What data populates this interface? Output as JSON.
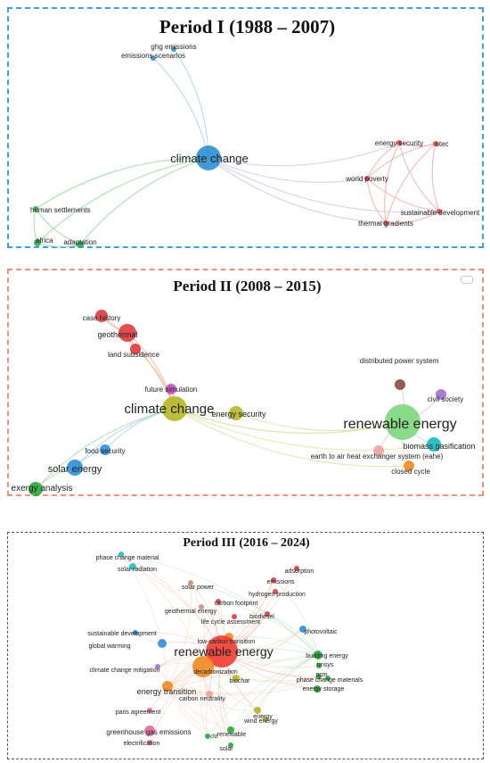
{
  "panels": [
    {
      "title": "Period I (1988 – 2007)",
      "border_color": "#3aa0e8",
      "nodes": [
        {
          "id": "cc",
          "label": "climate change",
          "color": "#2b8fd0"
        },
        {
          "id": "ghg",
          "label": "ghg emissions",
          "color": "#2b8fd0"
        },
        {
          "id": "es",
          "label": "emissions scenarios",
          "color": "#2b8fd0"
        },
        {
          "id": "hs",
          "label": "human settlements",
          "color": "#2ea84a"
        },
        {
          "id": "af",
          "label": "africa",
          "color": "#2ea84a"
        },
        {
          "id": "ad",
          "label": "adaptation",
          "color": "#2ea84a"
        },
        {
          "id": "en",
          "label": "energy security",
          "color": "#e0454a"
        },
        {
          "id": "ot",
          "label": "otec",
          "color": "#e0454a"
        },
        {
          "id": "wp",
          "label": "world poverty",
          "color": "#e0454a"
        },
        {
          "id": "sd",
          "label": "sustainable development",
          "color": "#e0454a"
        },
        {
          "id": "tg",
          "label": "thermal gradients",
          "color": "#e0454a"
        }
      ]
    },
    {
      "title": "Period II (2008 – 2015)",
      "border_color": "#f0927a",
      "nodes": [
        {
          "id": "ch",
          "label": "case history",
          "color": "#e0393e"
        },
        {
          "id": "ge",
          "label": "geothermal",
          "color": "#e0393e"
        },
        {
          "id": "ls",
          "label": "land subsidence",
          "color": "#e0393e"
        },
        {
          "id": "fs",
          "label": "future simulation",
          "color": "#c04fc0"
        },
        {
          "id": "cc",
          "label": "climate change",
          "color": "#b5b622"
        },
        {
          "id": "sec",
          "label": "energy security",
          "color": "#b5b622"
        },
        {
          "id": "dps",
          "label": "distributed power system",
          "color": "#8a4a40"
        },
        {
          "id": "cs",
          "label": "civil society",
          "color": "#a070d0"
        },
        {
          "id": "re",
          "label": "renewable energy",
          "color": "#7cd67c"
        },
        {
          "id": "bg",
          "label": "biomass gasification",
          "color": "#1ab8c0"
        },
        {
          "id": "eahe",
          "label": "earth to air heat exchanger system (eahe)",
          "color": "#f0a0a0"
        },
        {
          "id": "cyc",
          "label": "closed cycle",
          "color": "#f08a20"
        },
        {
          "id": "fsec",
          "label": "food security",
          "color": "#2e8fd8"
        },
        {
          "id": "se",
          "label": "solar energy",
          "color": "#2e8fd8"
        },
        {
          "id": "ea",
          "label": "exergy analysis",
          "color": "#2aa836"
        }
      ]
    },
    {
      "title": "Period III (2016 – 2024)",
      "border_color": "#555555",
      "nodes": [
        {
          "id": "pcm",
          "label": "phase change material",
          "color": "#1fbfc8"
        },
        {
          "id": "sr",
          "label": "solar radiation",
          "color": "#1fbfc8"
        },
        {
          "id": "sp",
          "label": "solar power",
          "color": "#c8907a"
        },
        {
          "id": "ads",
          "label": "adsorption",
          "color": "#e0393e"
        },
        {
          "id": "em",
          "label": "emissions",
          "color": "#e0393e"
        },
        {
          "id": "hp",
          "label": "hydrogen production",
          "color": "#e0393e"
        },
        {
          "id": "cf",
          "label": "carbon footprint",
          "color": "#e0393e"
        },
        {
          "id": "geo",
          "label": "geothermal energy",
          "color": "#c8907a"
        },
        {
          "id": "bd",
          "label": "biodiesel",
          "color": "#e0393e"
        },
        {
          "id": "lca",
          "label": "life cycle assessment",
          "color": "#e0393e"
        },
        {
          "id": "pv",
          "label": "photovoltaic",
          "color": "#2e8fd8"
        },
        {
          "id": "sdv",
          "label": "sustainable development",
          "color": "#2e8fd8"
        },
        {
          "id": "lct",
          "label": "low-carbon transition",
          "color": "#f08a20"
        },
        {
          "id": "gw",
          "label": "global warming",
          "color": "#2e8fd8"
        },
        {
          "id": "re",
          "label": "renewable energy",
          "color": "#f03c32"
        },
        {
          "id": "dc",
          "label": "decarbonization",
          "color": "#f08a20"
        },
        {
          "id": "be",
          "label": "building energy",
          "color": "#2aa836"
        },
        {
          "id": "tr",
          "label": "trnsys",
          "color": "#2aa836"
        },
        {
          "id": "pcm2",
          "label": "pcm",
          "color": "#2aa836"
        },
        {
          "id": "ccm",
          "label": "climate change mitigation",
          "color": "#a070d0"
        },
        {
          "id": "et",
          "label": "energy transition",
          "color": "#f08a20"
        },
        {
          "id": "bc",
          "label": "biochar",
          "color": "#b5b622"
        },
        {
          "id": "pcms",
          "label": "phase change materials",
          "color": "#2aa836"
        },
        {
          "id": "es2",
          "label": "energy storage",
          "color": "#2aa836"
        },
        {
          "id": "cn",
          "label": "carbon neutrality",
          "color": "#f0a0a0"
        },
        {
          "id": "pa",
          "label": "paris agreement",
          "color": "#e06aa0"
        },
        {
          "id": "en2",
          "label": "energy",
          "color": "#b5b622"
        },
        {
          "id": "we",
          "label": "wind energy",
          "color": "#b5b622"
        },
        {
          "id": "rn",
          "label": "renewable",
          "color": "#2aa836"
        },
        {
          "id": "gge",
          "label": "greenhouse gas emissions",
          "color": "#e06aa0"
        },
        {
          "id": "cfd",
          "label": "cfd",
          "color": "#2aa836"
        },
        {
          "id": "el",
          "label": "electrification",
          "color": "#e06aa0"
        },
        {
          "id": "sol",
          "label": "solar",
          "color": "#2aa836"
        }
      ]
    }
  ]
}
